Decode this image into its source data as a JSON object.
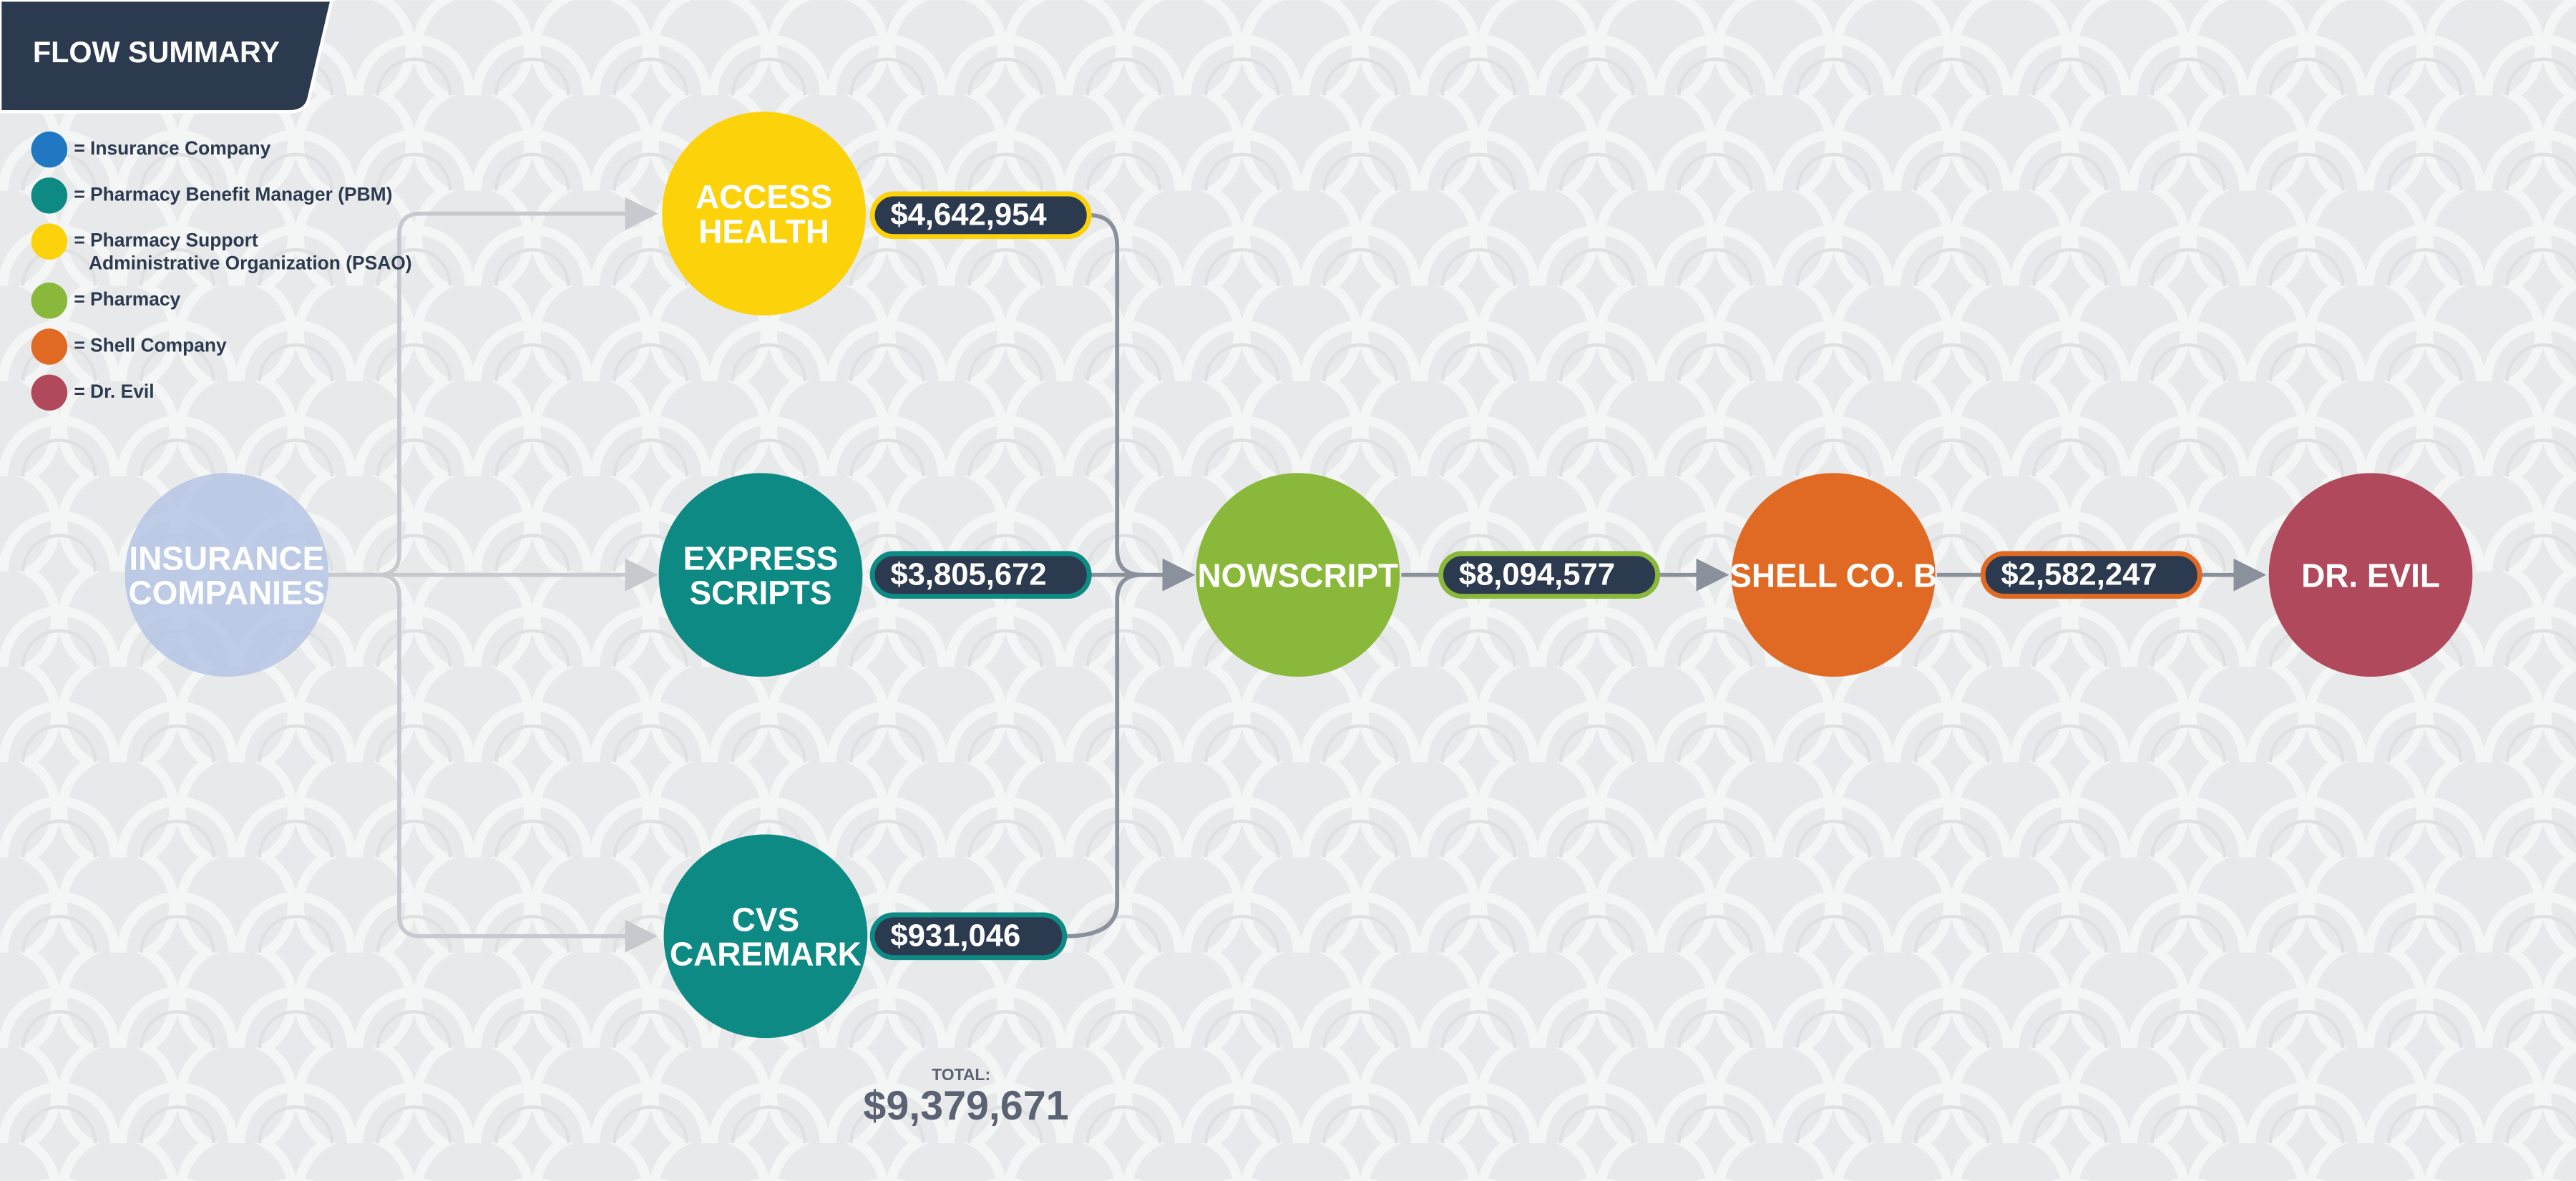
{
  "header": {
    "title": "FLOW SUMMARY"
  },
  "legend": [
    {
      "lines": [
        "= Insurance Company"
      ],
      "color": "#1f78c1"
    },
    {
      "lines": [
        "= Pharmacy Benefit Manager (PBM)"
      ],
      "color": "#0e8a84"
    },
    {
      "lines": [
        "= Pharmacy Support",
        "Administrative Organization (PSAO)"
      ],
      "color": "#fcd20a"
    },
    {
      "lines": [
        "= Pharmacy"
      ],
      "color": "#8ab83a"
    },
    {
      "lines": [
        "= Shell Company"
      ],
      "color": "#e06a24"
    },
    {
      "lines": [
        "= Dr. Evil"
      ],
      "color": "#b0495c"
    }
  ],
  "nodes": [
    {
      "lines": [
        "INSURANCE",
        "COMPANIES"
      ],
      "color": "#b4c4e4"
    },
    {
      "lines": [
        "ACCESS",
        "HEALTH"
      ],
      "color": "#fcd20a"
    },
    {
      "lines": [
        "EXPRESS",
        "SCRIPTS"
      ],
      "color": "#0e8a84"
    },
    {
      "lines": [
        "CVS",
        "CAREMARK"
      ],
      "color": "#0e8a84"
    },
    {
      "lines": [
        "NOWSCRIPT"
      ],
      "color": "#8ab83a"
    },
    {
      "lines": [
        "SHELL CO. B"
      ],
      "color": "#e06a24"
    },
    {
      "lines": [
        "DR. EVIL"
      ],
      "color": "#b0495c"
    }
  ],
  "flows": [
    {
      "amount": "$4,642,954",
      "color": "#fcd20a"
    },
    {
      "amount": "$3,805,672",
      "color": "#0e8a84"
    },
    {
      "amount": "$931,046",
      "color": "#0e8a84"
    },
    {
      "amount": "$8,094,577",
      "color": "#8ab83a"
    },
    {
      "amount": "$2,582,247",
      "color": "#e06a24"
    }
  ],
  "total": {
    "label": "TOTAL:",
    "amount": "$9,379,671"
  }
}
